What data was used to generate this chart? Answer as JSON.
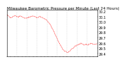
{
  "title": "Milwaukee Barometric Pressure per Minute (Last 24 Hours)",
  "background_color": "#ffffff",
  "line_color": "#ff0000",
  "grid_color": "#bbbbbb",
  "ylim": [
    29.35,
    30.22
  ],
  "yticks": [
    29.4,
    29.5,
    29.6,
    29.7,
    29.8,
    29.9,
    30.0,
    30.1,
    30.2
  ],
  "num_xticks": 25,
  "title_fontsize": 4,
  "tick_fontsize": 3.5,
  "pressure_profile": [
    30.13,
    30.12,
    30.11,
    30.1,
    30.09,
    30.08,
    30.08,
    30.07,
    30.08,
    30.09,
    30.1,
    30.1,
    30.11,
    30.12,
    30.12,
    30.11,
    30.1,
    30.1,
    30.09,
    30.09,
    30.1,
    30.1,
    30.11,
    30.11,
    30.1,
    30.09,
    30.09,
    30.08,
    30.08,
    30.07,
    30.07,
    30.06,
    30.07,
    30.07,
    30.08,
    30.08,
    30.09,
    30.09,
    30.09,
    30.09,
    30.1,
    30.1,
    30.11,
    30.11,
    30.11,
    30.1,
    30.1,
    30.09,
    30.09,
    30.08,
    30.08,
    30.08,
    30.09,
    30.09,
    30.1,
    30.09,
    30.09,
    30.08,
    30.08,
    30.07,
    30.07,
    30.06,
    30.06,
    30.05,
    30.04,
    30.03,
    30.02,
    30.01,
    29.99,
    29.98,
    29.97,
    29.95,
    29.93,
    29.91,
    29.89,
    29.87,
    29.85,
    29.83,
    29.8,
    29.78,
    29.75,
    29.73,
    29.7,
    29.68,
    29.65,
    29.63,
    29.6,
    29.58,
    29.56,
    29.54,
    29.52,
    29.5,
    29.48,
    29.47,
    29.46,
    29.45,
    29.44,
    29.44,
    29.43,
    29.42,
    29.42,
    29.43,
    29.43,
    29.44,
    29.45,
    29.46,
    29.47,
    29.48,
    29.49,
    29.5,
    29.51,
    29.52,
    29.53,
    29.54,
    29.54,
    29.55,
    29.56,
    29.56,
    29.57,
    29.57,
    29.58,
    29.58,
    29.59,
    29.59,
    29.58,
    29.57,
    29.57,
    29.56,
    29.56,
    29.57,
    29.57,
    29.58,
    29.57,
    29.56,
    29.56,
    29.57,
    29.58,
    29.58,
    29.59,
    29.59,
    29.59,
    29.58,
    29.58,
    29.57,
    29.57,
    29.57,
    29.58,
    29.58,
    29.58,
    29.57
  ]
}
